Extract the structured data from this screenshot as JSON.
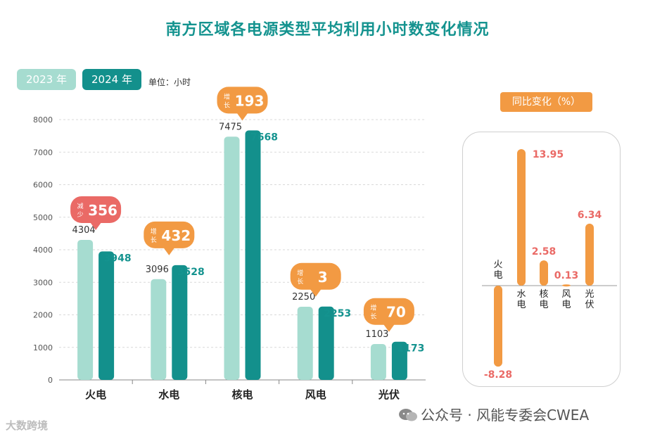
{
  "title": "南方区域各电源类型平均利用小时数变化情况",
  "legend": [
    {
      "label": "2023 年",
      "color": "#a6dcd0"
    },
    {
      "label": "2024 年",
      "color": "#13908c"
    }
  ],
  "unit_label": "单位：小时",
  "ratio_title": "同比变化（%）",
  "colors": {
    "accent_orange": "#f29a43",
    "decrease_red": "#ea6a66",
    "title": "#14938f",
    "value_2024": "#14938f",
    "value_2023": "#333333"
  },
  "chart_data": [
    {
      "type": "bar",
      "title": "南方区域各电源类型平均利用小时数变化情况",
      "ylabel": "单位：小时",
      "categories": [
        "火电",
        "水电",
        "核电",
        "风电",
        "光伏"
      ],
      "ylim": [
        0,
        8000
      ],
      "yticks": [
        0,
        1000,
        2000,
        3000,
        4000,
        5000,
        6000,
        7000,
        8000
      ],
      "series": [
        {
          "name": "2023 年",
          "values": [
            4304,
            3096,
            7475,
            2250,
            1103
          ]
        },
        {
          "name": "2024 年",
          "values": [
            3948,
            3528,
            7668,
            2253,
            1173
          ]
        }
      ],
      "annotations": [
        {
          "category": "火电",
          "label": "减少",
          "value": "356",
          "kind": "decrease"
        },
        {
          "category": "水电",
          "label": "增长",
          "value": "432",
          "kind": "increase"
        },
        {
          "category": "核电",
          "label": "增长",
          "value": "193",
          "kind": "increase"
        },
        {
          "category": "风电",
          "label": "增长",
          "value": "3",
          "kind": "increase"
        },
        {
          "category": "光伏",
          "label": "增长",
          "value": "70",
          "kind": "increase"
        }
      ]
    },
    {
      "type": "bar",
      "title": "同比变化（%）",
      "categories": [
        "火电",
        "水电",
        "核电",
        "风电",
        "光伏"
      ],
      "values": [
        -8.28,
        13.95,
        2.58,
        0.13,
        6.34
      ],
      "value_labels": [
        "-8.28",
        "13.95",
        "2.58",
        "0.13",
        "6.34"
      ]
    }
  ],
  "watermarks": {
    "left": "大数跨境",
    "right": "公众号 · 风能专委会CWEA"
  }
}
